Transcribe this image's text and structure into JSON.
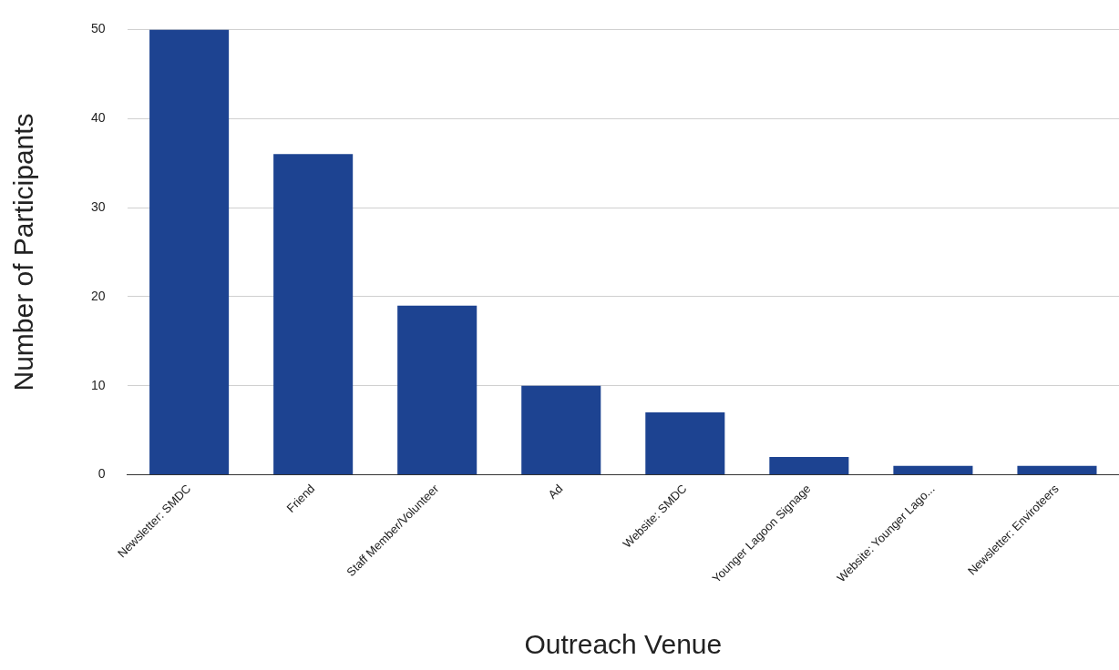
{
  "chart_data": {
    "type": "bar",
    "xlabel": "Outreach Venue",
    "ylabel": "Number of Participants",
    "categories": [
      "Newsletter: SMDC",
      "Friend",
      "Staff Member/Volunteer",
      "Ad",
      "Website: SMDC",
      "Younger Lagoon Signage",
      "Website: Younger Lago...",
      "Newsletter: Enviroteers"
    ],
    "values": [
      50,
      36,
      19,
      10,
      7,
      2,
      1,
      1
    ],
    "color": "#1d4391",
    "ylim": [
      0,
      50
    ],
    "yticks": [
      0,
      10,
      20,
      30,
      40,
      50
    ],
    "grid": "y",
    "legend": false
  }
}
